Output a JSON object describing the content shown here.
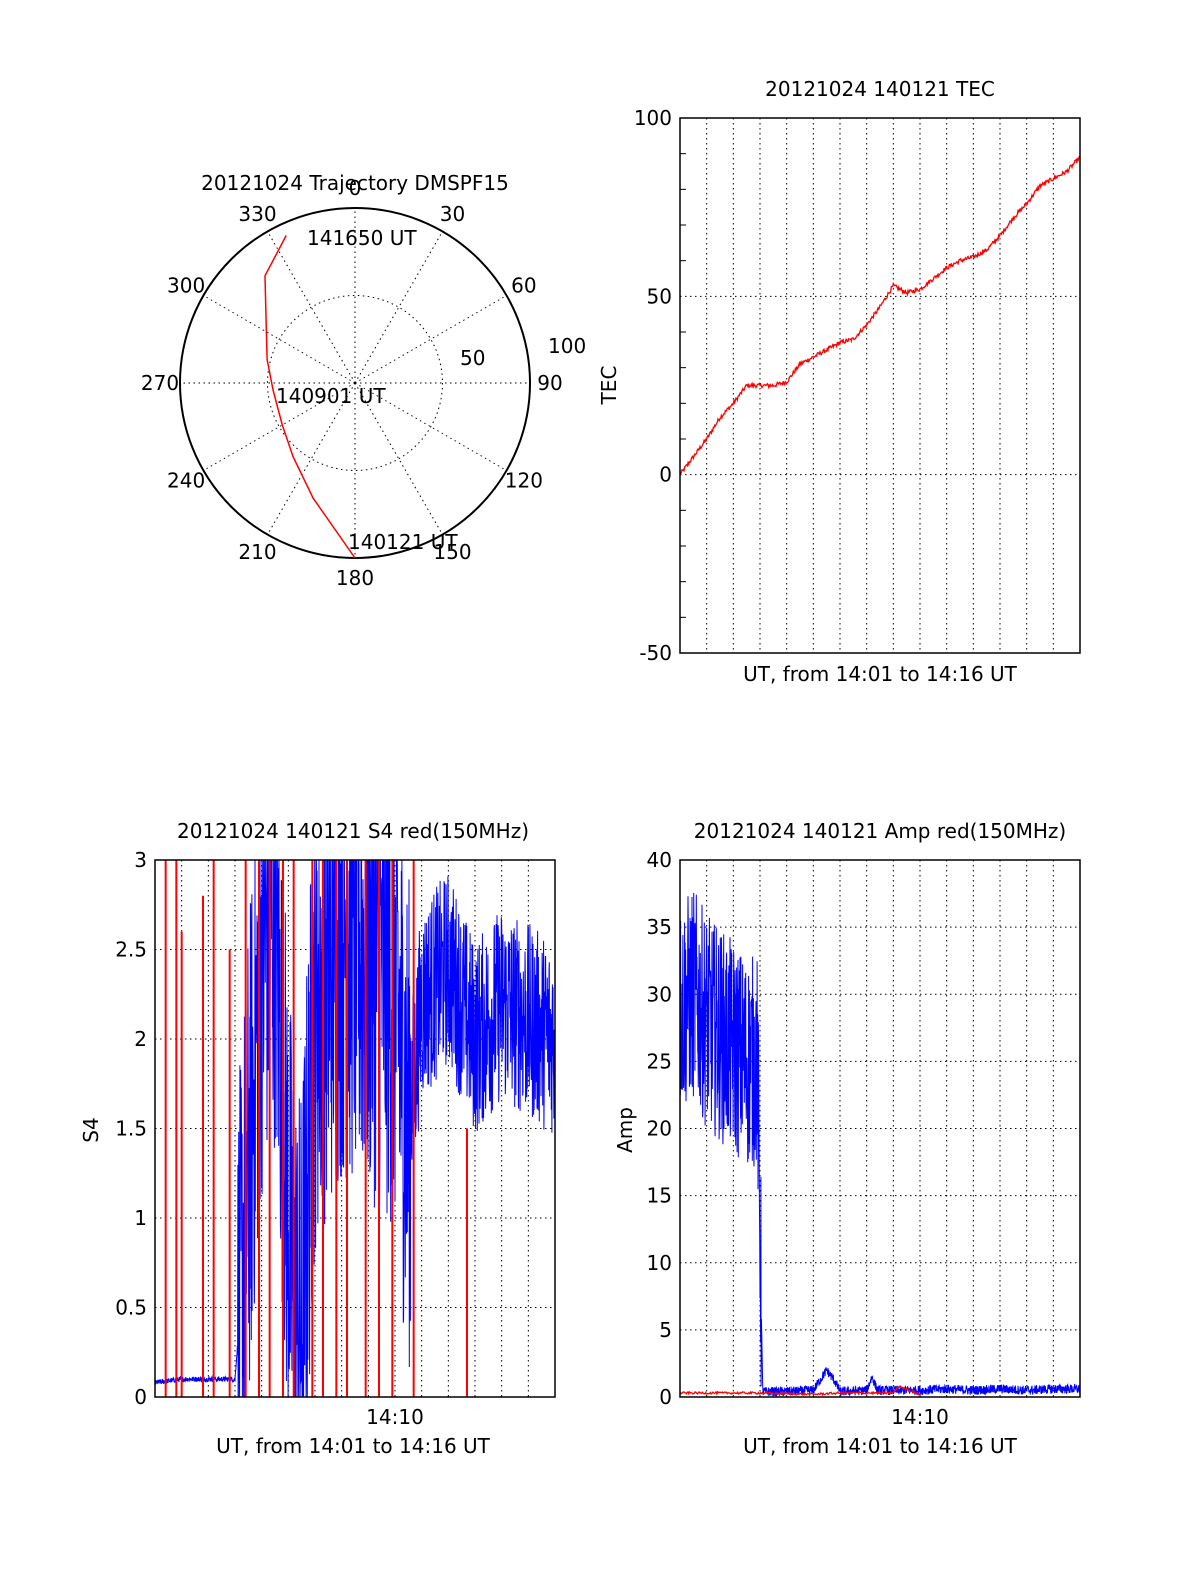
{
  "colors": {
    "red": "#ff0000",
    "blue": "#0000ff",
    "axis": "#000000"
  },
  "chart_data": [
    {
      "type": "polar",
      "title": "20121024 Trajectory DMSPF15",
      "angle_ticks": [
        "0",
        "30",
        "60",
        "90",
        "120",
        "150",
        "180",
        "210",
        "240",
        "270",
        "300",
        "330"
      ],
      "radial_ticks": [
        "50",
        "100"
      ],
      "annotations": {
        "start": "140121 UT",
        "middle": "140901 UT",
        "end": "141650 UT"
      },
      "trajectory": {
        "color": "red",
        "points": [
          {
            "az": 180,
            "r": 100
          },
          {
            "az": 200,
            "r": 70
          },
          {
            "az": 220,
            "r": 55
          },
          {
            "az": 240,
            "r": 48
          },
          {
            "az": 265,
            "r": 47
          },
          {
            "az": 285,
            "r": 52
          },
          {
            "az": 305,
            "r": 62
          },
          {
            "az": 320,
            "r": 80
          },
          {
            "az": 335,
            "r": 93
          }
        ]
      }
    },
    {
      "type": "line",
      "title": "20121024 140121 TEC",
      "ylabel": "TEC",
      "xlabel": "UT, from 14:01 to 14:16 UT",
      "xlim": [
        0,
        15
      ],
      "ylim": [
        -50,
        100
      ],
      "yticks": [
        "-50",
        "0",
        "50",
        "100"
      ],
      "grid": true,
      "series": [
        {
          "color": "red",
          "x": [
            0,
            0.5,
            1,
            1.5,
            2,
            2.5,
            3,
            3.5,
            4,
            4.5,
            5,
            5.5,
            6,
            6.5,
            7,
            7.5,
            8,
            8.5,
            9,
            9.5,
            10,
            10.5,
            11,
            11.5,
            12,
            12.5,
            13,
            13.5,
            14,
            14.5,
            15
          ],
          "y": [
            0,
            5,
            10,
            16,
            20,
            25,
            25,
            25,
            26,
            31,
            33,
            35,
            37,
            38,
            42,
            47,
            53,
            51,
            52,
            55,
            58,
            60,
            61,
            63,
            67,
            72,
            76,
            81,
            83,
            85,
            89
          ]
        }
      ]
    },
    {
      "type": "line",
      "title": "20121024 140121 S4 red(150MHz)",
      "ylabel": "S4",
      "xlabel": "UT, from 14:01 to 14:16 UT",
      "xlim": [
        0,
        15
      ],
      "ylim": [
        0,
        3
      ],
      "yticks": [
        "0",
        "0.5",
        "1",
        "1.5",
        "2",
        "2.5",
        "3"
      ],
      "xticks": [
        {
          "x": 9,
          "label": "14:10"
        }
      ],
      "grid": true,
      "series": [
        {
          "color": "blue",
          "noisy": true,
          "x": [
            0,
            0.5,
            1,
            1.5,
            2,
            2.5,
            3,
            3.2,
            3.6,
            4,
            4.5,
            5,
            5.3,
            5.5,
            6,
            7,
            8,
            9,
            9.5,
            10,
            11,
            12,
            13,
            14,
            15
          ],
          "y": [
            0.08,
            0.09,
            0.1,
            0.1,
            0.1,
            0.1,
            0.1,
            0.5,
            1.5,
            2.5,
            2.8,
            1.0,
            0.4,
            0.35,
            2.2,
            2.6,
            2.5,
            2.3,
            1.5,
            2.2,
            2.4,
            2.0,
            2.2,
            2.1,
            2.0
          ]
        },
        {
          "color": "red",
          "spikes": true,
          "x": [
            0.4,
            0.8,
            1.0,
            1.8,
            2.2,
            2.8,
            3.4,
            3.9,
            4.3,
            4.8,
            5.2,
            5.9,
            6.3,
            6.8,
            7.2,
            7.9,
            8.4,
            8.9,
            9.7,
            11.7
          ],
          "y": [
            3,
            3,
            2.6,
            2.8,
            3,
            2.5,
            3,
            3,
            3,
            3,
            3,
            3,
            3,
            3,
            3,
            3,
            3,
            3,
            3,
            1.5
          ]
        }
      ]
    },
    {
      "type": "line",
      "title": "20121024 140121 Amp red(150MHz)",
      "ylabel": "Amp",
      "xlabel": "UT, from 14:01 to 14:16 UT",
      "xlim": [
        0,
        15
      ],
      "ylim": [
        0,
        40
      ],
      "yticks": [
        "0",
        "5",
        "10",
        "15",
        "20",
        "25",
        "30",
        "35",
        "40"
      ],
      "xticks": [
        {
          "x": 9,
          "label": "14:10"
        }
      ],
      "grid": true,
      "series": [
        {
          "color": "blue",
          "noisy": true,
          "x": [
            0,
            0.5,
            1,
            1.5,
            2,
            2.5,
            2.9,
            3.1,
            4,
            5,
            5.5,
            5.8,
            6,
            7,
            7.2,
            7.4,
            8,
            9,
            10,
            11,
            12,
            13,
            14,
            15
          ],
          "y": [
            29,
            30,
            28,
            27,
            26,
            25,
            25,
            0.4,
            0.4,
            0.5,
            2.0,
            1.2,
            0.4,
            0.5,
            1.5,
            0.5,
            0.5,
            0.5,
            0.6,
            0.5,
            0.6,
            0.5,
            0.6,
            0.6
          ]
        },
        {
          "color": "red",
          "x": [
            0,
            1,
            2,
            3,
            3.1,
            5,
            6,
            7,
            8,
            8.2,
            9
          ],
          "y": [
            0.3,
            0.3,
            0.3,
            0.3,
            0.3,
            0.2,
            0.3,
            0.3,
            0.3,
            0.8,
            0.2
          ]
        }
      ]
    }
  ]
}
